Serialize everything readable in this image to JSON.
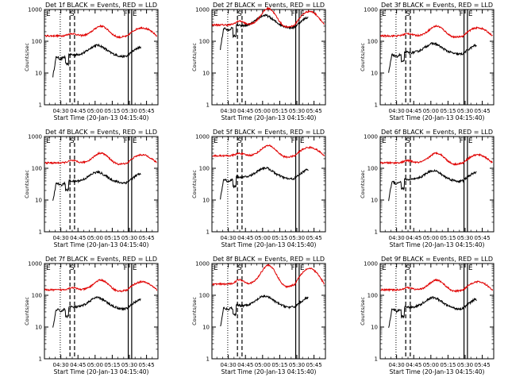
{
  "figure": {
    "start_time_label": "Start Time (20-Jan-13 04:15:40)",
    "ylabel": "Counts/sec",
    "legend_text": "BLACK = Events, RED = LLD",
    "colors": {
      "events": "#000000",
      "lld": "#e00000",
      "frame": "#000000",
      "background": "#ffffff"
    }
  },
  "chart_data": [
    {
      "type": "line",
      "title": "Det 1f BLACK = Events, RED = LLD",
      "detector": "1f",
      "xlabel": "Start Time (20-Jan-13 04:15:40)",
      "ylabel": "Counts/sec",
      "yscale": "log",
      "ylim": [
        1,
        1000
      ],
      "yticks": [
        "1",
        "10",
        "100",
        "1000"
      ],
      "xtick_labels": [
        "04:30",
        "04:45",
        "05:00",
        "05:15",
        "05:30",
        "05:45"
      ],
      "markers": {
        "E": "E",
        "S": "S",
        "F": "F",
        "E2": "E"
      },
      "series": [
        {
          "name": "Events",
          "color": "#000000",
          "start": "04:23",
          "end": "05:40",
          "approx_range": [
            7,
            80
          ]
        },
        {
          "name": "LLD",
          "color": "#e00000",
          "start": "04:16",
          "end": "05:54",
          "approx_range": [
            120,
            320
          ]
        }
      ]
    },
    {
      "type": "line",
      "title": "Det 2f BLACK = Events, RED = LLD",
      "detector": "2f",
      "xlabel": "Start Time (20-Jan-13 04:15:40)",
      "ylabel": "Counts/sec",
      "yscale": "log",
      "ylim": [
        1,
        1000
      ],
      "yticks": [
        "1",
        "10",
        "100",
        "1000"
      ],
      "xtick_labels": [
        "04:30",
        "04:45",
        "05:00",
        "05:15",
        "05:30",
        "05:45"
      ],
      "markers": {
        "E": "E",
        "S": "S",
        "F": "F",
        "E2": "E"
      },
      "series": [
        {
          "name": "Events",
          "color": "#000000",
          "start": "04:23",
          "end": "05:40",
          "approx_range": [
            50,
            700
          ]
        },
        {
          "name": "LLD",
          "color": "#e00000",
          "start": "04:16",
          "end": "05:54",
          "approx_range": [
            230,
            1200
          ]
        }
      ]
    },
    {
      "type": "line",
      "title": "Det 3f BLACK = Events, RED = LLD",
      "detector": "3f",
      "xlabel": "Start Time (20-Jan-13 04:15:40)",
      "ylabel": "Counts/sec",
      "yscale": "log",
      "ylim": [
        1,
        1000
      ],
      "yticks": [
        "1",
        "10",
        "100",
        "1000"
      ],
      "xtick_labels": [
        "04:30",
        "04:45",
        "05:00",
        "05:15",
        "05:30",
        "05:45"
      ],
      "markers": {
        "E": "E",
        "S": "S",
        "F": "F",
        "E2": "E"
      },
      "series": [
        {
          "name": "Events",
          "color": "#000000",
          "start": "04:23",
          "end": "05:40",
          "approx_range": [
            9,
            90
          ]
        },
        {
          "name": "LLD",
          "color": "#e00000",
          "start": "04:16",
          "end": "05:54",
          "approx_range": [
            120,
            320
          ]
        }
      ]
    },
    {
      "type": "line",
      "title": "Det 4f BLACK = Events, RED = LLD",
      "detector": "4f",
      "xlabel": "Start Time (20-Jan-13 04:15:40)",
      "ylabel": "Counts/sec",
      "yscale": "log",
      "ylim": [
        1,
        1000
      ],
      "yticks": [
        "1",
        "10",
        "100",
        "1000"
      ],
      "xtick_labels": [
        "04:30",
        "04:45",
        "05:00",
        "05:15",
        "05:30",
        "05:45"
      ],
      "markers": {
        "E": "E",
        "S": "S",
        "F": "F",
        "E2": "E"
      },
      "series": [
        {
          "name": "Events",
          "color": "#000000",
          "start": "04:23",
          "end": "05:40",
          "approx_range": [
            8,
            80
          ]
        },
        {
          "name": "LLD",
          "color": "#e00000",
          "start": "04:16",
          "end": "05:54",
          "approx_range": [
            120,
            320
          ]
        }
      ]
    },
    {
      "type": "line",
      "title": "Det 5f BLACK = Events, RED = LLD",
      "detector": "5f",
      "xlabel": "Start Time (20-Jan-13 04:15:40)",
      "ylabel": "Counts/sec",
      "yscale": "log",
      "ylim": [
        1,
        1000
      ],
      "yticks": [
        "1",
        "10",
        "100",
        "1000"
      ],
      "xtick_labels": [
        "04:30",
        "04:45",
        "05:00",
        "05:15",
        "05:30",
        "05:45"
      ],
      "markers": {
        "E": "E",
        "S": "S",
        "F": "F",
        "E2": "E"
      },
      "series": [
        {
          "name": "Events",
          "color": "#000000",
          "start": "04:23",
          "end": "05:40",
          "approx_range": [
            10,
            110
          ]
        },
        {
          "name": "LLD",
          "color": "#e00000",
          "start": "04:16",
          "end": "05:54",
          "approx_range": [
            200,
            550
          ]
        }
      ]
    },
    {
      "type": "line",
      "title": "Det 6f BLACK = Events, RED = LLD",
      "detector": "6f",
      "xlabel": "Start Time (20-Jan-13 04:15:40)",
      "ylabel": "Counts/sec",
      "yscale": "log",
      "ylim": [
        1,
        1000
      ],
      "yticks": [
        "1",
        "10",
        "100",
        "1000"
      ],
      "xtick_labels": [
        "04:30",
        "04:45",
        "05:00",
        "05:15",
        "05:30",
        "05:45"
      ],
      "markers": {
        "E": "E",
        "S": "S",
        "F": "F",
        "E2": "E"
      },
      "series": [
        {
          "name": "Events",
          "color": "#000000",
          "start": "04:23",
          "end": "05:40",
          "approx_range": [
            9,
            90
          ]
        },
        {
          "name": "LLD",
          "color": "#e00000",
          "start": "04:16",
          "end": "05:54",
          "approx_range": [
            120,
            320
          ]
        }
      ]
    },
    {
      "type": "line",
      "title": "Det 7f BLACK = Events, RED = LLD",
      "detector": "7f",
      "xlabel": "Start Time (20-Jan-13 04:15:40)",
      "ylabel": "Counts/sec",
      "yscale": "log",
      "ylim": [
        1,
        1000
      ],
      "yticks": [
        "1",
        "10",
        "100",
        "1000"
      ],
      "xtick_labels": [
        "04:30",
        "04:45",
        "05:00",
        "05:15",
        "05:30",
        "05:45"
      ],
      "markers": {
        "E": "E",
        "S": "S",
        "F": "F",
        "E2": "E"
      },
      "series": [
        {
          "name": "Events",
          "color": "#000000",
          "start": "04:23",
          "end": "05:40",
          "approx_range": [
            8,
            90
          ]
        },
        {
          "name": "LLD",
          "color": "#e00000",
          "start": "04:16",
          "end": "05:54",
          "approx_range": [
            120,
            320
          ]
        }
      ]
    },
    {
      "type": "line",
      "title": "Det 8f BLACK = Events, RED = LLD",
      "detector": "8f",
      "xlabel": "Start Time (20-Jan-13 04:15:40)",
      "ylabel": "Counts/sec",
      "yscale": "log",
      "ylim": [
        1,
        1000
      ],
      "yticks": [
        "1",
        "10",
        "100",
        "1000"
      ],
      "xtick_labels": [
        "04:30",
        "04:45",
        "05:00",
        "05:15",
        "05:30",
        "05:45"
      ],
      "markers": {
        "E": "E",
        "S": "S",
        "F": "F",
        "E2": "E"
      },
      "series": [
        {
          "name": "Events",
          "color": "#000000",
          "start": "04:23",
          "end": "05:40",
          "approx_range": [
            9,
            100
          ]
        },
        {
          "name": "LLD",
          "color": "#e00000",
          "start": "04:16",
          "end": "05:54",
          "approx_range": [
            150,
            1000
          ]
        }
      ]
    },
    {
      "type": "line",
      "title": "Det 9f BLACK = Events, RED = LLD",
      "detector": "9f",
      "xlabel": "Start Time (20-Jan-13 04:15:40)",
      "ylabel": "Counts/sec",
      "yscale": "log",
      "ylim": [
        1,
        1000
      ],
      "yticks": [
        "1",
        "10",
        "100",
        "1000"
      ],
      "xtick_labels": [
        "04:30",
        "04:45",
        "05:00",
        "05:15",
        "05:30",
        "05:45"
      ],
      "markers": {
        "E": "E",
        "S": "S",
        "F": "F",
        "E2": "E"
      },
      "series": [
        {
          "name": "Events",
          "color": "#000000",
          "start": "04:23",
          "end": "05:40",
          "approx_range": [
            8,
            90
          ]
        },
        {
          "name": "LLD",
          "color": "#e00000",
          "start": "04:16",
          "end": "05:54",
          "approx_range": [
            120,
            320
          ]
        }
      ]
    }
  ]
}
